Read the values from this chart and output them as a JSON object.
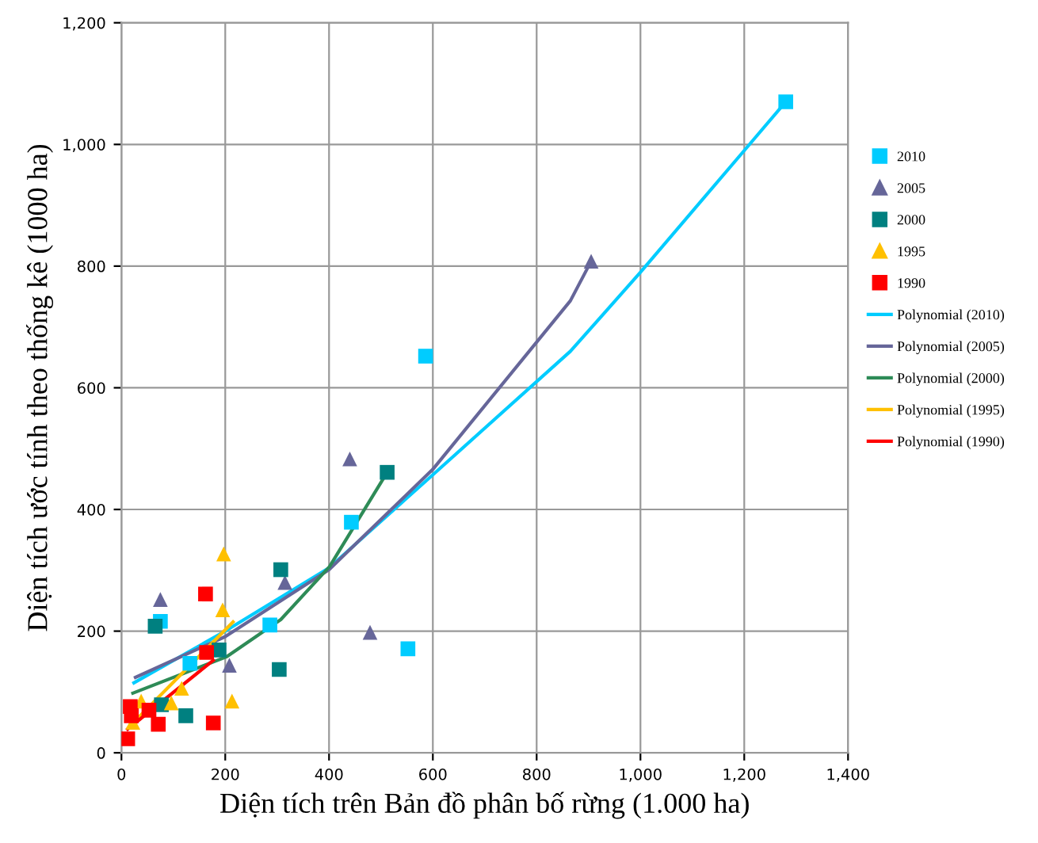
{
  "chart_data": {
    "type": "scatter",
    "xlabel": "Diện tích trên Bản đồ phân bố rừng (1.000 ha)",
    "ylabel": "Diện tích ước tính theo thống kê (1000 ha)",
    "xlim": [
      0,
      1400
    ],
    "ylim": [
      0,
      1200
    ],
    "xticks": [
      0,
      {
        "value": 200,
        "label": "200"
      },
      {
        "value": 400,
        "label": "400"
      },
      {
        "value": 600,
        "label": "600"
      },
      {
        "value": 800,
        "label": "800"
      },
      {
        "value": 1000,
        "label": "1,000"
      },
      {
        "value": 1200,
        "label": "1,200"
      },
      {
        "value": 1400,
        "label": "1,400"
      }
    ],
    "yticks": [
      0,
      {
        "value": 200,
        "label": "200"
      },
      {
        "value": 400,
        "label": "400"
      },
      {
        "value": 600,
        "label": "600"
      },
      {
        "value": 800,
        "label": "800"
      },
      {
        "value": 1000,
        "label": "1,000"
      },
      {
        "value": 1200,
        "label": "1,200"
      }
    ],
    "grid": true,
    "legend": "right",
    "series": [
      {
        "name": "2010",
        "marker": "square",
        "color": "#00ccff",
        "x": [
          1280,
          586,
          443,
          552,
          286,
          75,
          132
        ],
        "values": [
          1070,
          652,
          379,
          171,
          210,
          216,
          147
        ]
      },
      {
        "name": "2005",
        "marker": "triangle",
        "color": "#666699",
        "x": [
          905,
          440,
          479,
          315,
          75,
          208
        ],
        "values": [
          808,
          483,
          198,
          280,
          252,
          144
        ]
      },
      {
        "name": "2000",
        "marker": "square",
        "color": "#008080",
        "x": [
          512,
          307,
          304,
          188,
          65,
          124,
          77
        ],
        "values": [
          461,
          301,
          137,
          169,
          208,
          61,
          79
        ]
      },
      {
        "name": "1995",
        "marker": "triangle",
        "color": "#ffc000",
        "x": [
          197,
          195,
          213,
          116,
          96,
          38,
          22
        ],
        "values": [
          327,
          235,
          85,
          106,
          82,
          85,
          50
        ]
      },
      {
        "name": "1990",
        "marker": "square",
        "color": "#ff0000",
        "x": [
          162,
          164,
          177,
          71,
          12,
          17,
          53,
          19
        ],
        "values": [
          261,
          165,
          49,
          47,
          23,
          76,
          70,
          61
        ]
      },
      {
        "name": "Polynomial (2010)",
        "type": "line",
        "color": "#00ccff",
        "x": [
          24,
          200,
          400,
          600,
          865,
          1000,
          1214,
          1280
        ],
        "values": [
          115,
          200,
          304,
          457,
          660,
          790,
          1004,
          1070
        ]
      },
      {
        "name": "Polynomial (2005)",
        "type": "line",
        "color": "#666699",
        "x": [
          27,
          200,
          400,
          600,
          865,
          905
        ],
        "values": [
          124,
          191,
          301,
          466,
          743,
          808
        ]
      },
      {
        "name": "Polynomial (2000)",
        "type": "line",
        "color": "#2e8b57",
        "x": [
          22,
          203,
          307,
          401,
          512
        ],
        "values": [
          98,
          158,
          219,
          306,
          461
        ]
      },
      {
        "name": "Polynomial (1995)",
        "type": "line",
        "color": "#ffc000",
        "x": [
          14,
          215
        ],
        "values": [
          42,
          215
        ]
      },
      {
        "name": "Polynomial (1990)",
        "type": "line",
        "color": "#ff0000",
        "x": [
          12,
          177
        ],
        "values": [
          39,
          152
        ]
      }
    ]
  }
}
